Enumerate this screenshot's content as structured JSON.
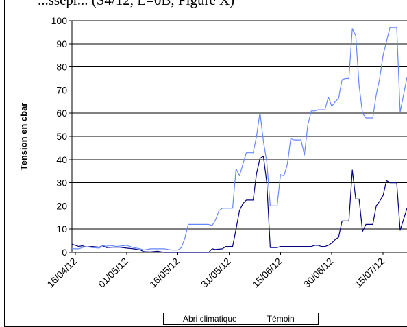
{
  "caption_fragment": "...ssepr... (S4/12, L=0B, Figure X)",
  "chart_data": {
    "type": "line",
    "ylabel": "Tension en cbar",
    "xlabel": "",
    "ylim": [
      0,
      100
    ],
    "y_ticks": [
      0,
      10,
      20,
      30,
      40,
      50,
      60,
      70,
      80,
      90,
      100
    ],
    "x_start": "2012-04-15",
    "x_end": "2012-07-22",
    "x_ticks": [
      "16/04/12",
      "01/05/12",
      "16/05/12",
      "31/05/12",
      "15/06/12",
      "30/06/12",
      "15/07/12"
    ],
    "x_tick_dates": [
      "2012-04-16",
      "2012-05-01",
      "2012-05-16",
      "2012-05-31",
      "2012-06-15",
      "2012-06-30",
      "2012-07-15"
    ],
    "grid": "horizontal",
    "legend_position": "bottom",
    "series": [
      {
        "name": "Abri climatique",
        "color": "#000080",
        "points": [
          [
            "2012-04-15",
            3.5
          ],
          [
            "2012-04-17",
            2.5
          ],
          [
            "2012-04-18",
            2.8
          ],
          [
            "2012-04-19",
            2.3
          ],
          [
            "2012-04-21",
            2.5
          ],
          [
            "2012-04-23",
            2.2
          ],
          [
            "2012-04-24",
            2.8
          ],
          [
            "2012-04-25",
            2.0
          ],
          [
            "2012-04-27",
            2.2
          ],
          [
            "2012-04-29",
            2.2
          ],
          [
            "2012-05-01",
            1.8
          ],
          [
            "2012-05-03",
            1.5
          ],
          [
            "2012-05-05",
            1.0
          ],
          [
            "2012-05-06",
            0.3
          ],
          [
            "2012-05-08",
            0.2
          ],
          [
            "2012-05-10",
            0.5
          ],
          [
            "2012-05-12",
            0
          ],
          [
            "2012-05-14",
            0
          ],
          [
            "2012-05-16",
            0
          ],
          [
            "2012-05-19",
            0
          ],
          [
            "2012-05-22",
            0
          ],
          [
            "2012-05-25",
            0
          ],
          [
            "2012-05-26",
            1.5
          ],
          [
            "2012-05-27",
            1.2
          ],
          [
            "2012-05-29",
            1.5
          ],
          [
            "2012-05-30",
            2.5
          ],
          [
            "2012-05-31",
            2.5
          ],
          [
            "2012-06-01",
            2.5
          ],
          [
            "2012-06-02",
            10.0
          ],
          [
            "2012-06-03",
            18.0
          ],
          [
            "2012-06-04",
            21.0
          ],
          [
            "2012-06-05",
            22.5
          ],
          [
            "2012-06-06",
            22.5
          ],
          [
            "2012-06-07",
            22.5
          ],
          [
            "2012-06-08",
            34.0
          ],
          [
            "2012-06-09",
            40.5
          ],
          [
            "2012-06-10",
            41.5
          ],
          [
            "2012-06-11",
            30.0
          ],
          [
            "2012-06-12",
            2.0
          ],
          [
            "2012-06-13",
            2.0
          ],
          [
            "2012-06-14",
            2.0
          ],
          [
            "2012-06-15",
            2.5
          ],
          [
            "2012-06-18",
            2.5
          ],
          [
            "2012-06-21",
            2.5
          ],
          [
            "2012-06-24",
            2.5
          ],
          [
            "2012-06-25",
            3.0
          ],
          [
            "2012-06-26",
            3.0
          ],
          [
            "2012-06-27",
            2.5
          ],
          [
            "2012-06-28",
            2.5
          ],
          [
            "2012-06-29",
            3.0
          ],
          [
            "2012-06-30",
            4.0
          ],
          [
            "2012-07-01",
            5.5
          ],
          [
            "2012-07-02",
            6.5
          ],
          [
            "2012-07-03",
            13.5
          ],
          [
            "2012-07-04",
            13.5
          ],
          [
            "2012-07-05",
            13.5
          ],
          [
            "2012-07-06",
            35.5
          ],
          [
            "2012-07-07",
            23.0
          ],
          [
            "2012-07-08",
            23.0
          ],
          [
            "2012-07-09",
            9.0
          ],
          [
            "2012-07-10",
            12.0
          ],
          [
            "2012-07-11",
            12.0
          ],
          [
            "2012-07-12",
            12.0
          ],
          [
            "2012-07-13",
            20.0
          ],
          [
            "2012-07-14",
            22.0
          ],
          [
            "2012-07-15",
            24.5
          ],
          [
            "2012-07-16",
            31.0
          ],
          [
            "2012-07-17",
            30.0
          ],
          [
            "2012-07-18",
            30.0
          ],
          [
            "2012-07-19",
            30.0
          ],
          [
            "2012-07-20",
            9.5
          ],
          [
            "2012-07-22",
            19.0
          ]
        ]
      },
      {
        "name": "Témoin",
        "color": "#6688ff",
        "points": [
          [
            "2012-04-15",
            1.5
          ],
          [
            "2012-04-17",
            1.5
          ],
          [
            "2012-04-18",
            2.0
          ],
          [
            "2012-04-19",
            2.5
          ],
          [
            "2012-04-21",
            2.0
          ],
          [
            "2012-04-23",
            1.8
          ],
          [
            "2012-04-24",
            3.0
          ],
          [
            "2012-04-25",
            2.5
          ],
          [
            "2012-04-26",
            3.0
          ],
          [
            "2012-04-28",
            2.5
          ],
          [
            "2012-05-01",
            3.0
          ],
          [
            "2012-05-03",
            2.0
          ],
          [
            "2012-05-05",
            1.5
          ],
          [
            "2012-05-06",
            1.0
          ],
          [
            "2012-05-08",
            1.5
          ],
          [
            "2012-05-10",
            1.5
          ],
          [
            "2012-05-12",
            1.5
          ],
          [
            "2012-05-14",
            1.0
          ],
          [
            "2012-05-16",
            1.0
          ],
          [
            "2012-05-17",
            2.0
          ],
          [
            "2012-05-18",
            6.0
          ],
          [
            "2012-05-19",
            12.0
          ],
          [
            "2012-05-21",
            12.0
          ],
          [
            "2012-05-24",
            12.0
          ],
          [
            "2012-05-25",
            12.0
          ],
          [
            "2012-05-26",
            11.5
          ],
          [
            "2012-05-27",
            14.0
          ],
          [
            "2012-05-28",
            18.0
          ],
          [
            "2012-05-29",
            19.0
          ],
          [
            "2012-05-31",
            19.0
          ],
          [
            "2012-06-01",
            19.0
          ],
          [
            "2012-06-02",
            36.0
          ],
          [
            "2012-06-03",
            33.0
          ],
          [
            "2012-06-04",
            38.0
          ],
          [
            "2012-06-05",
            43.0
          ],
          [
            "2012-06-06",
            43.0
          ],
          [
            "2012-06-07",
            43.0
          ],
          [
            "2012-06-08",
            50.0
          ],
          [
            "2012-06-09",
            60.5
          ],
          [
            "2012-06-10",
            48.0
          ],
          [
            "2012-06-11",
            39.0
          ],
          [
            "2012-06-12",
            20.0
          ],
          [
            "2012-06-13",
            20.0
          ],
          [
            "2012-06-14",
            20.0
          ],
          [
            "2012-06-15",
            33.5
          ],
          [
            "2012-06-16",
            33.0
          ],
          [
            "2012-06-17",
            38.0
          ],
          [
            "2012-06-18",
            49.0
          ],
          [
            "2012-06-19",
            48.5
          ],
          [
            "2012-06-21",
            48.5
          ],
          [
            "2012-06-22",
            42.0
          ],
          [
            "2012-06-23",
            55.0
          ],
          [
            "2012-06-24",
            61.0
          ],
          [
            "2012-06-25",
            61.0
          ],
          [
            "2012-06-26",
            61.5
          ],
          [
            "2012-06-27",
            61.5
          ],
          [
            "2012-06-28",
            61.5
          ],
          [
            "2012-06-29",
            67.0
          ],
          [
            "2012-06-30",
            63.0
          ],
          [
            "2012-07-01",
            65.0
          ],
          [
            "2012-07-02",
            66.5
          ],
          [
            "2012-07-03",
            74.5
          ],
          [
            "2012-07-04",
            75.0
          ],
          [
            "2012-07-05",
            75.0
          ],
          [
            "2012-07-06",
            96.5
          ],
          [
            "2012-07-07",
            93.5
          ],
          [
            "2012-07-08",
            72.0
          ],
          [
            "2012-07-09",
            60.0
          ],
          [
            "2012-07-10",
            58.0
          ],
          [
            "2012-07-11",
            58.0
          ],
          [
            "2012-07-12",
            58.0
          ],
          [
            "2012-07-13",
            68.0
          ],
          [
            "2012-07-14",
            75.0
          ],
          [
            "2012-07-15",
            85.0
          ],
          [
            "2012-07-16",
            91.0
          ],
          [
            "2012-07-17",
            97.0
          ],
          [
            "2012-07-18",
            97.0
          ],
          [
            "2012-07-19",
            97.0
          ],
          [
            "2012-07-20",
            60.5
          ],
          [
            "2012-07-22",
            75.5
          ]
        ]
      }
    ]
  }
}
